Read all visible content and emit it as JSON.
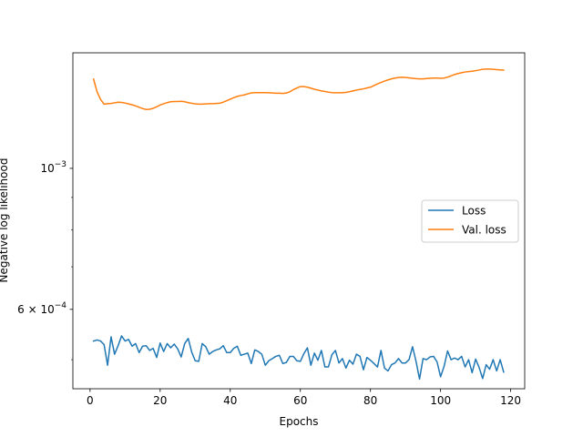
{
  "chart_data": {
    "type": "line",
    "xlabel": "Epochs",
    "ylabel": "Negative log likelihood",
    "yscale": "log",
    "xlim": [
      -4.9,
      124
    ],
    "ylim": [
      0.00045,
      0.00152
    ],
    "xticks": [
      0,
      20,
      40,
      60,
      80,
      100,
      120
    ],
    "yticks": [
      {
        "value": 0.001,
        "base": "10",
        "exponent": "−3",
        "mantissa": ""
      },
      {
        "value": 0.0006,
        "base": "10",
        "exponent": "−4",
        "mantissa": "6 × "
      }
    ],
    "legend": {
      "placement": "center-right"
    },
    "grid": false,
    "series": [
      {
        "name": "Loss",
        "color": "#1f77b4",
        "x": [
          1,
          2,
          3,
          4,
          5,
          6,
          7,
          8,
          9,
          10,
          11,
          12,
          13,
          14,
          15,
          16,
          17,
          18,
          19,
          20,
          21,
          22,
          23,
          24,
          25,
          26,
          27,
          28,
          29,
          30,
          31,
          32,
          33,
          34,
          35,
          36,
          37,
          38,
          39,
          40,
          41,
          42,
          43,
          44,
          45,
          46,
          47,
          48,
          49,
          50,
          51,
          52,
          53,
          54,
          55,
          56,
          57,
          58,
          59,
          60,
          61,
          62,
          63,
          64,
          65,
          66,
          67,
          68,
          69,
          70,
          71,
          72,
          73,
          74,
          75,
          76,
          77,
          78,
          79,
          80,
          81,
          82,
          83,
          84,
          85,
          86,
          87,
          88,
          89,
          90,
          91,
          92,
          93,
          94,
          95,
          96,
          97,
          98,
          99,
          100,
          101,
          102,
          103,
          104,
          105,
          106,
          107,
          108,
          109,
          110,
          111,
          112,
          113,
          114,
          115,
          116,
          117,
          118
        ],
        "y": [
          0.000535,
          0.000537,
          0.000535,
          0.000528,
          0.00049,
          0.000543,
          0.00051,
          0.000526,
          0.000545,
          0.000535,
          0.000538,
          0.000525,
          0.00053,
          0.000513,
          0.000525,
          0.000526,
          0.000517,
          0.000521,
          0.000504,
          0.000531,
          0.000515,
          0.00053,
          0.000522,
          0.000529,
          0.00052,
          0.000505,
          0.00053,
          0.00054,
          0.000514,
          0.000498,
          0.000497,
          0.00053,
          0.000524,
          0.00051,
          0.000515,
          0.000518,
          0.00052,
          0.000526,
          0.000513,
          0.000513,
          0.000521,
          0.000525,
          0.000508,
          0.00051,
          0.000512,
          0.000493,
          0.000518,
          0.000515,
          0.00051,
          0.00049,
          0.000498,
          0.000502,
          0.000506,
          0.000508,
          0.000493,
          0.000495,
          0.000506,
          0.000506,
          0.000498,
          0.000497,
          0.000511,
          0.000522,
          0.00049,
          0.000512,
          0.000499,
          0.000517,
          0.000487,
          0.000487,
          0.000509,
          0.000517,
          0.000494,
          0.000502,
          0.000485,
          0.000499,
          0.000492,
          0.00051,
          0.000506,
          0.000482,
          0.000504,
          0.000499,
          0.000493,
          0.000487,
          0.000517,
          0.000485,
          0.00048,
          0.000491,
          0.000494,
          0.000502,
          0.000494,
          0.000494,
          0.0005,
          0.000524,
          0.000497,
          0.000466,
          0.000502,
          0.0005,
          0.000505,
          0.000506,
          0.000496,
          0.00047,
          0.000488,
          0.000516,
          0.0005,
          0.000503,
          0.0005,
          0.000506,
          0.000487,
          0.0005,
          0.000477,
          0.000501,
          0.000486,
          0.000467,
          0.000491,
          0.000483,
          0.0005,
          0.00048,
          0.0005,
          0.000478
        ]
      },
      {
        "name": "Val. loss",
        "color": "#ff7f0e",
        "x": [
          1,
          2,
          3,
          4,
          5,
          6,
          7,
          8,
          9,
          10,
          11,
          12,
          13,
          14,
          15,
          16,
          17,
          18,
          19,
          20,
          21,
          22,
          23,
          24,
          25,
          26,
          27,
          28,
          29,
          30,
          31,
          32,
          33,
          34,
          35,
          36,
          37,
          38,
          39,
          40,
          41,
          42,
          43,
          44,
          45,
          46,
          47,
          48,
          49,
          50,
          51,
          52,
          53,
          54,
          55,
          56,
          57,
          58,
          59,
          60,
          61,
          62,
          63,
          64,
          65,
          66,
          67,
          68,
          69,
          70,
          71,
          72,
          73,
          74,
          75,
          76,
          77,
          78,
          79,
          80,
          81,
          82,
          83,
          84,
          85,
          86,
          87,
          88,
          89,
          90,
          91,
          92,
          93,
          94,
          95,
          96,
          97,
          98,
          99,
          100,
          101,
          102,
          103,
          104,
          105,
          106,
          107,
          108,
          109,
          110,
          111,
          112,
          113,
          114,
          115,
          116,
          117,
          118
        ],
        "y": [
          0.001382,
          0.00132,
          0.001284,
          0.001262,
          0.001264,
          0.001265,
          0.001268,
          0.001271,
          0.00127,
          0.001267,
          0.001263,
          0.001259,
          0.001254,
          0.001248,
          0.001242,
          0.001238,
          0.001239,
          0.001243,
          0.00125,
          0.001258,
          0.001264,
          0.001269,
          0.001273,
          0.001274,
          0.001274,
          0.001275,
          0.001273,
          0.001269,
          0.001266,
          0.001263,
          0.001262,
          0.001262,
          0.001263,
          0.001264,
          0.001264,
          0.001265,
          0.001266,
          0.001271,
          0.001278,
          0.001285,
          0.001292,
          0.001298,
          0.001302,
          0.001305,
          0.00131,
          0.001314,
          0.001316,
          0.001316,
          0.001316,
          0.001316,
          0.001315,
          0.001314,
          0.001313,
          0.001313,
          0.001312,
          0.001314,
          0.00132,
          0.00133,
          0.001338,
          0.001345,
          0.001345,
          0.001342,
          0.001337,
          0.001332,
          0.001328,
          0.001324,
          0.001321,
          0.001318,
          0.001316,
          0.001315,
          0.001315,
          0.001316,
          0.001317,
          0.00132,
          0.001324,
          0.001328,
          0.001331,
          0.001334,
          0.001338,
          0.001342,
          0.00135,
          0.001358,
          0.001365,
          0.001372,
          0.001378,
          0.001383,
          0.001387,
          0.00139,
          0.001391,
          0.00139,
          0.001388,
          0.001386,
          0.001384,
          0.001383,
          0.001383,
          0.001385,
          0.001386,
          0.001387,
          0.001387,
          0.001386,
          0.001387,
          0.001392,
          0.001398,
          0.001405,
          0.00141,
          0.001414,
          0.001418,
          0.00142,
          0.001422,
          0.001425,
          0.001428,
          0.001432,
          0.001433,
          0.001433,
          0.001432,
          0.00143,
          0.001429,
          0.001428
        ]
      }
    ]
  }
}
